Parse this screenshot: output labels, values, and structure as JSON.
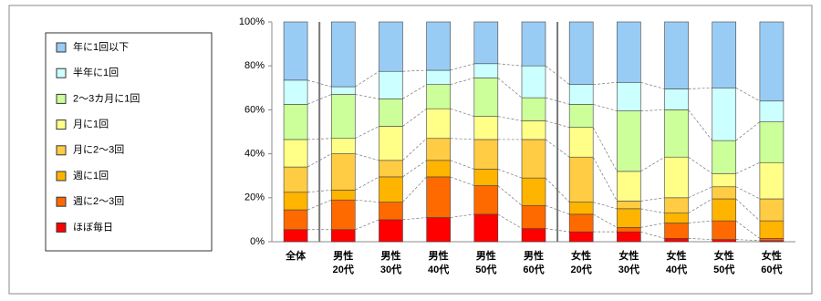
{
  "chart_data": {
    "type": "stacked_bar_100",
    "categories": [
      "全体",
      "男性\n20代",
      "男性\n30代",
      "男性\n40代",
      "男性\n50代",
      "男性\n60代",
      "女性\n20代",
      "女性\n30代",
      "女性\n40代",
      "女性\n50代",
      "女性\n60代"
    ],
    "series": [
      {
        "name": "ほぼ毎日",
        "color": "#ff0000",
        "values": [
          5.5,
          5.5,
          10,
          11,
          12.5,
          6,
          4.5,
          4.5,
          1.5,
          1,
          0.5
        ]
      },
      {
        "name": "週に2～3回",
        "color": "#ff6a00",
        "values": [
          9,
          13.5,
          8,
          18.5,
          13,
          10.5,
          8,
          2,
          7,
          8.5,
          1
        ]
      },
      {
        "name": "週に1回",
        "color": "#ffb400",
        "values": [
          8,
          4.5,
          11.5,
          7.5,
          7.5,
          12.5,
          5.5,
          8.5,
          4.5,
          10,
          8
        ]
      },
      {
        "name": "月に2～3回",
        "color": "#ffcc44",
        "values": [
          11.5,
          16.5,
          7.5,
          10,
          13.5,
          17.5,
          20.5,
          3.5,
          7,
          5.5,
          10
        ]
      },
      {
        "name": "月に1回",
        "color": "#ffff88",
        "values": [
          12.5,
          7,
          15.5,
          13.5,
          10.5,
          8.5,
          13.5,
          13.5,
          18.5,
          6,
          16.5
        ]
      },
      {
        "name": "2～3カ月に1回",
        "color": "#ccff99",
        "values": [
          16,
          20,
          12.5,
          11,
          17.5,
          10.5,
          10.5,
          27.5,
          21.5,
          15,
          18.5
        ]
      },
      {
        "name": "半年に1回",
        "color": "#ccffff",
        "values": [
          11,
          3.5,
          12.5,
          6.5,
          6.5,
          14.5,
          9,
          13,
          9.5,
          24,
          9.5
        ]
      },
      {
        "name": "年に1回以下",
        "color": "#99ccf5",
        "values": [
          26.5,
          29.5,
          22.5,
          22,
          19,
          20,
          28.5,
          27.5,
          30.5,
          30,
          36
        ]
      }
    ],
    "ylim": [
      0,
      100
    ],
    "yticks": [
      {
        "value": 0,
        "label": "0%"
      },
      {
        "value": 20,
        "label": "20%"
      },
      {
        "value": 40,
        "label": "40%"
      },
      {
        "value": 60,
        "label": "60%"
      },
      {
        "value": 80,
        "label": "80%"
      },
      {
        "value": 100,
        "label": "100%"
      }
    ]
  }
}
